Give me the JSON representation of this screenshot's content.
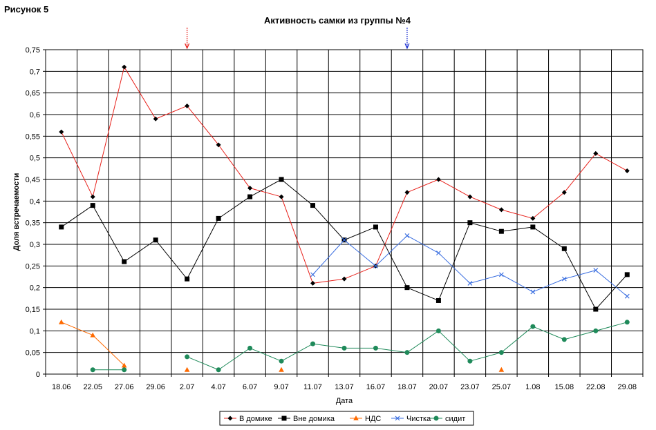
{
  "figure_label": "Рисунок 5",
  "chart_data": {
    "type": "line",
    "title": "Активность самки из группы №4",
    "xlabel": "Дата",
    "ylabel": "Доля встречаемости",
    "categories": [
      "18.06",
      "22.05",
      "27.06",
      "29.06",
      "2.07",
      "4.07",
      "6.07",
      "9.07",
      "11.07",
      "13.07",
      "16.07",
      "18.07",
      "20.07",
      "23.07",
      "25.07",
      "1.08",
      "15.08",
      "22.08",
      "29.08"
    ],
    "yticks": [
      "0",
      "0,05",
      "0,1",
      "0,15",
      "0,2",
      "0,25",
      "0,3",
      "0,35",
      "0,4",
      "0,45",
      "0,5",
      "0,55",
      "0,6",
      "0,65",
      "0,7",
      "0,75"
    ],
    "ylim": [
      0,
      0.75
    ],
    "grid": true,
    "legend_position": "bottom",
    "series": [
      {
        "name": "В домике",
        "color": "#e8201a",
        "marker": "diamond",
        "marker_color": "#000000",
        "values": [
          0.56,
          0.41,
          0.71,
          0.59,
          0.62,
          0.53,
          0.43,
          0.41,
          0.21,
          0.22,
          0.25,
          0.42,
          0.45,
          0.41,
          0.38,
          0.36,
          0.42,
          0.51,
          0.47
        ]
      },
      {
        "name": "Вне домика",
        "color": "#000000",
        "marker": "square",
        "marker_color": "#000000",
        "values": [
          0.34,
          0.39,
          0.26,
          0.31,
          0.22,
          0.36,
          0.41,
          0.45,
          0.39,
          0.31,
          0.34,
          0.2,
          0.17,
          0.35,
          0.33,
          0.34,
          0.29,
          0.15,
          0.23
        ]
      },
      {
        "name": "НДС",
        "color": "#ff6a00",
        "marker": "triangle",
        "marker_color": "#ff6a00",
        "values": [
          0.12,
          0.09,
          0.02,
          null,
          0.01,
          null,
          null,
          0.01,
          null,
          null,
          null,
          null,
          null,
          null,
          0.01,
          null,
          null,
          null,
          null
        ]
      },
      {
        "name": "Чистка",
        "color": "#3a6ee0",
        "marker": "x",
        "marker_color": "#3a6ee0",
        "values": [
          null,
          null,
          null,
          null,
          null,
          null,
          null,
          null,
          0.23,
          0.31,
          0.25,
          0.32,
          0.28,
          0.21,
          0.23,
          0.19,
          0.22,
          0.24,
          0.18
        ]
      },
      {
        "name": "сидит",
        "color": "#1f8a5a",
        "marker": "circle",
        "marker_color": "#1f8a5a",
        "values": [
          null,
          0.01,
          0.01,
          null,
          0.04,
          0.01,
          0.06,
          0.03,
          0.07,
          0.06,
          0.06,
          0.05,
          0.1,
          0.03,
          0.05,
          0.11,
          0.08,
          0.1,
          0.12
        ]
      }
    ],
    "arrows": [
      {
        "category": "2.07",
        "color": "#e8201a"
      },
      {
        "category": "18.07",
        "color": "#1a2fd0"
      }
    ]
  }
}
